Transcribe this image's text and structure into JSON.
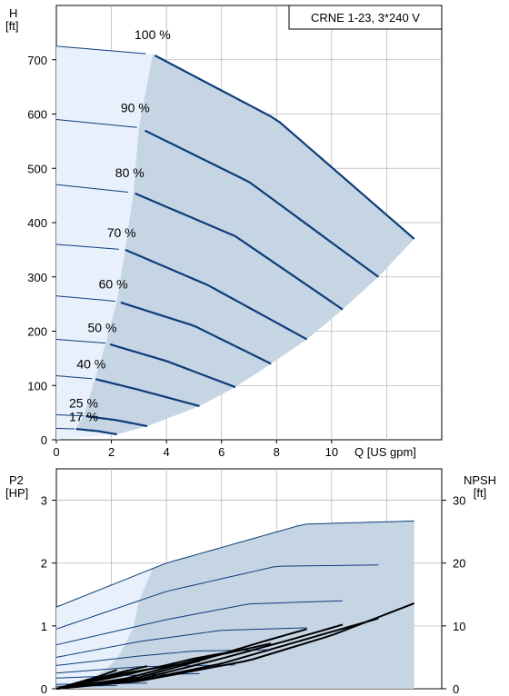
{
  "chart_data": [
    {
      "type": "line",
      "title": "CRNE 1-23, 3*240 V",
      "ylabel": "H",
      "yunit": "[ft]",
      "xlabel": "Q [US gpm]",
      "xlim": [
        0,
        14
      ],
      "ylim": [
        0,
        800
      ],
      "xticks": [
        0,
        2,
        4,
        6,
        8,
        10
      ],
      "yticks": [
        0,
        100,
        200,
        300,
        400,
        500,
        600,
        700
      ],
      "grid": true,
      "series": [
        {
          "name": "100 %",
          "x": [
            0,
            3.5,
            8,
            13
          ],
          "y": [
            725,
            710,
            590,
            370
          ]
        },
        {
          "name": "90 %",
          "x": [
            0,
            3,
            7,
            11.7
          ],
          "y": [
            590,
            575,
            475,
            300
          ]
        },
        {
          "name": "80 %",
          "x": [
            0,
            2.8,
            6.5,
            10.4
          ],
          "y": [
            470,
            455,
            375,
            240
          ]
        },
        {
          "name": "70 %",
          "x": [
            0,
            2.5,
            5.5,
            9.1
          ],
          "y": [
            360,
            350,
            285,
            185
          ]
        },
        {
          "name": "60 %",
          "x": [
            0,
            2.2,
            5,
            7.8
          ],
          "y": [
            265,
            255,
            210,
            140
          ]
        },
        {
          "name": "50 %",
          "x": [
            0,
            1.8,
            4,
            6.5
          ],
          "y": [
            185,
            178,
            145,
            97
          ]
        },
        {
          "name": "40 %",
          "x": [
            0,
            1.4,
            3,
            5.2
          ],
          "y": [
            118,
            112,
            92,
            62
          ]
        },
        {
          "name": "25 %",
          "x": [
            0,
            1,
            2.2,
            3.3
          ],
          "y": [
            46,
            44,
            36,
            25
          ]
        },
        {
          "name": "17 %",
          "x": [
            0,
            0.7,
            1.5,
            2.2
          ],
          "y": [
            21,
            20,
            16,
            10
          ]
        }
      ]
    },
    {
      "type": "line",
      "ylabel": "P2",
      "yunit": "[HP]",
      "y2label": "NPSH",
      "y2unit": "[ft]",
      "xlim": [
        0,
        14
      ],
      "ylim": [
        0,
        3.5
      ],
      "y2lim": [
        0,
        35
      ],
      "yticks": [
        0,
        1,
        2,
        3
      ],
      "y2ticks": [
        0,
        10,
        20,
        30
      ],
      "grid": true,
      "series_p2": [
        {
          "x": [
            0,
            4,
            9,
            13
          ],
          "y": [
            1.3,
            2.0,
            2.62,
            2.67
          ]
        },
        {
          "x": [
            0,
            4,
            8,
            11.7
          ],
          "y": [
            0.95,
            1.55,
            1.95,
            1.97
          ]
        },
        {
          "x": [
            0,
            4,
            7,
            10.4
          ],
          "y": [
            0.7,
            1.1,
            1.35,
            1.4
          ]
        },
        {
          "x": [
            0,
            3,
            6,
            9.1
          ],
          "y": [
            0.5,
            0.75,
            0.93,
            0.97
          ]
        },
        {
          "x": [
            0,
            3,
            5,
            7.8
          ],
          "y": [
            0.37,
            0.52,
            0.6,
            0.62
          ]
        },
        {
          "x": [
            0,
            3,
            6.5
          ],
          "y": [
            0.25,
            0.35,
            0.38
          ]
        },
        {
          "x": [
            0,
            3,
            5.2
          ],
          "y": [
            0.17,
            0.22,
            0.24
          ]
        },
        {
          "x": [
            0,
            3.3
          ],
          "y": [
            0.07,
            0.09
          ]
        },
        {
          "x": [
            0,
            2.2
          ],
          "y": [
            0.04,
            0.05
          ]
        }
      ],
      "series_npsh": [
        {
          "x": [
            0,
            3,
            7,
            10,
            13
          ],
          "y": [
            0,
            1.2,
            4.5,
            8.5,
            13.6
          ]
        },
        {
          "x": [
            0,
            3,
            6,
            9,
            11.7
          ],
          "y": [
            0,
            1.3,
            4,
            7.8,
            11.2
          ]
        },
        {
          "x": [
            0,
            3,
            6,
            8.5,
            10.4
          ],
          "y": [
            0,
            1.5,
            4.8,
            7.8,
            10.2
          ]
        },
        {
          "x": [
            0,
            3,
            5,
            7.5,
            9.1
          ],
          "y": [
            0,
            1.8,
            4.2,
            7.5,
            9.5
          ]
        },
        {
          "x": [
            0,
            2.5,
            5,
            7.8
          ],
          "y": [
            0,
            1.6,
            4.5,
            7.2
          ]
        },
        {
          "x": [
            0,
            2.5,
            5,
            6.5
          ],
          "y": [
            0,
            2.2,
            4.8,
            6
          ]
        },
        {
          "x": [
            0,
            2.5,
            5.2
          ],
          "y": [
            0,
            2.5,
            4.4
          ]
        },
        {
          "x": [
            0,
            2.5,
            3.3
          ],
          "y": [
            0,
            2.8,
            3.6
          ]
        },
        {
          "x": [
            0,
            1.5,
            2.2
          ],
          "y": [
            0,
            1.9,
            3
          ]
        }
      ]
    }
  ],
  "colors": {
    "curve": "#0d3c7a",
    "region_light": "#e8f1fb",
    "region_dark": "#c6d5e4",
    "grid": "#b8b8b8",
    "npsh": "#000000",
    "axis": "#000000"
  }
}
